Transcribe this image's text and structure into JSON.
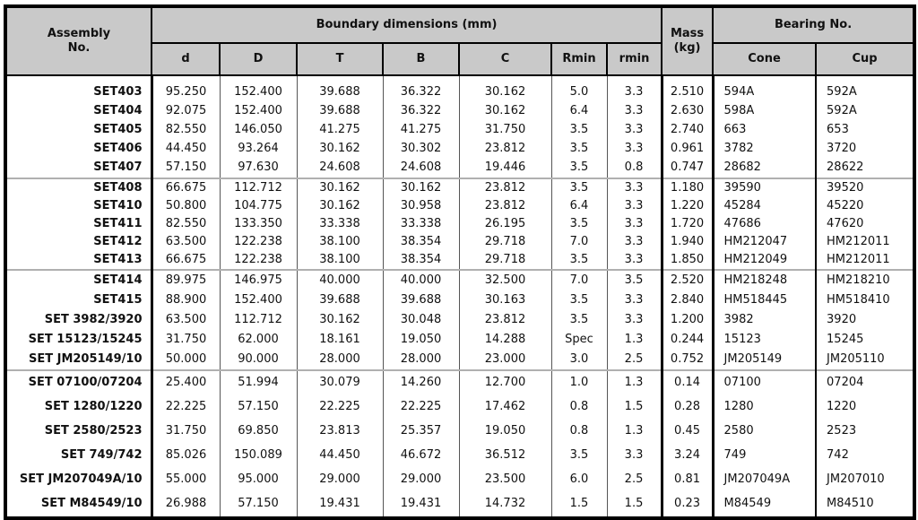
{
  "table": {
    "header": {
      "assembly": "Assembly\nNo.",
      "boundary": "Boundary dimensions (mm)",
      "mass": "Mass\n(kg)",
      "bearing": "Bearing No.",
      "dim_cols": {
        "d": "d",
        "D": "D",
        "T": "T",
        "B": "B",
        "C": "C",
        "Rmin": "Rmin",
        "rmin": "rmin"
      },
      "bearing_cols": {
        "cone": "Cone",
        "cup": "Cup"
      }
    },
    "column_keys": [
      "assembly",
      "d",
      "D",
      "T",
      "B",
      "C",
      "Rmin",
      "rmin",
      "mass",
      "cone",
      "cup"
    ],
    "groups": [
      {
        "rows": [
          [
            "SET403",
            "95.250",
            "152.400",
            "39.688",
            "36.322",
            "30.162",
            "5.0",
            "3.3",
            "2.510",
            "594A",
            "592A"
          ],
          [
            "SET404",
            "92.075",
            "152.400",
            "39.688",
            "36.322",
            "30.162",
            "6.4",
            "3.3",
            "2.630",
            "598A",
            "592A"
          ],
          [
            "SET405",
            "82.550",
            "146.050",
            "41.275",
            "41.275",
            "31.750",
            "3.5",
            "3.3",
            "2.740",
            "663",
            "653"
          ],
          [
            "SET406",
            "44.450",
            "93.264",
            "30.162",
            "30.302",
            "23.812",
            "3.5",
            "3.3",
            "0.961",
            "3782",
            "3720"
          ],
          [
            "SET407",
            "57.150",
            "97.630",
            "24.608",
            "24.608",
            "19.446",
            "3.5",
            "0.8",
            "0.747",
            "28682",
            "28622"
          ]
        ]
      },
      {
        "rows": [
          [
            "SET408",
            "66.675",
            "112.712",
            "30.162",
            "30.162",
            "23.812",
            "3.5",
            "3.3",
            "1.180",
            "39590",
            "39520"
          ],
          [
            "SET410",
            "50.800",
            "104.775",
            "30.162",
            "30.958",
            "23.812",
            "6.4",
            "3.3",
            "1.220",
            "45284",
            "45220"
          ],
          [
            "SET411",
            "82.550",
            "133.350",
            "33.338",
            "33.338",
            "26.195",
            "3.5",
            "3.3",
            "1.720",
            "47686",
            "47620"
          ],
          [
            "SET412",
            "63.500",
            "122.238",
            "38.100",
            "38.354",
            "29.718",
            "7.0",
            "3.3",
            "1.940",
            "HM212047",
            "HM212011"
          ],
          [
            "SET413",
            "66.675",
            "122.238",
            "38.100",
            "38.354",
            "29.718",
            "3.5",
            "3.3",
            "1.850",
            "HM212049",
            "HM212011"
          ]
        ]
      },
      {
        "rows": [
          [
            "SET414",
            "89.975",
            "146.975",
            "40.000",
            "40.000",
            "32.500",
            "7.0",
            "3.5",
            "2.520",
            "HM218248",
            "HM218210"
          ],
          [
            "SET415",
            "88.900",
            "152.400",
            "39.688",
            "39.688",
            "30.163",
            "3.5",
            "3.3",
            "2.840",
            "HM518445",
            "HM518410"
          ],
          [
            "SET 3982/3920",
            "63.500",
            "112.712",
            "30.162",
            "30.048",
            "23.812",
            "3.5",
            "3.3",
            "1.200",
            "3982",
            "3920"
          ],
          [
            "SET 15123/15245",
            "31.750",
            "62.000",
            "18.161",
            "19.050",
            "14.288",
            "Spec",
            "1.3",
            "0.244",
            "15123",
            "15245"
          ],
          [
            "SET JM205149/10",
            "50.000",
            "90.000",
            "28.000",
            "28.000",
            "23.000",
            "3.0",
            "2.5",
            "0.752",
            "JM205149",
            "JM205110"
          ]
        ]
      },
      {
        "rows": [
          [
            "SET 07100/07204",
            "25.400",
            "51.994",
            "30.079",
            "14.260",
            "12.700",
            "1.0",
            "1.3",
            "0.14",
            "07100",
            "07204"
          ],
          [
            "SET 1280/1220",
            "22.225",
            "57.150",
            "22.225",
            "22.225",
            "17.462",
            "0.8",
            "1.5",
            "0.28",
            "1280",
            "1220"
          ],
          [
            "SET 2580/2523",
            "31.750",
            "69.850",
            "23.813",
            "25.357",
            "19.050",
            "0.8",
            "1.3",
            "0.45",
            "2580",
            "2523"
          ],
          [
            "SET 749/742",
            "85.026",
            "150.089",
            "44.450",
            "46.672",
            "36.512",
            "3.5",
            "3.3",
            "3.24",
            "749",
            "742"
          ],
          [
            "SET JM207049A/10",
            "55.000",
            "95.000",
            "29.000",
            "29.000",
            "23.500",
            "6.0",
            "2.5",
            "0.81",
            "JM207049A",
            "JM207010"
          ],
          [
            "SET M84549/10",
            "26.988",
            "57.150",
            "19.431",
            "19.431",
            "14.732",
            "1.5",
            "1.5",
            "0.23",
            "M84549",
            "M84510"
          ]
        ]
      }
    ]
  },
  "colors": {
    "header_bg": "#c9c9c9",
    "border": "#000000",
    "group_separator": "#b0b0b0"
  }
}
